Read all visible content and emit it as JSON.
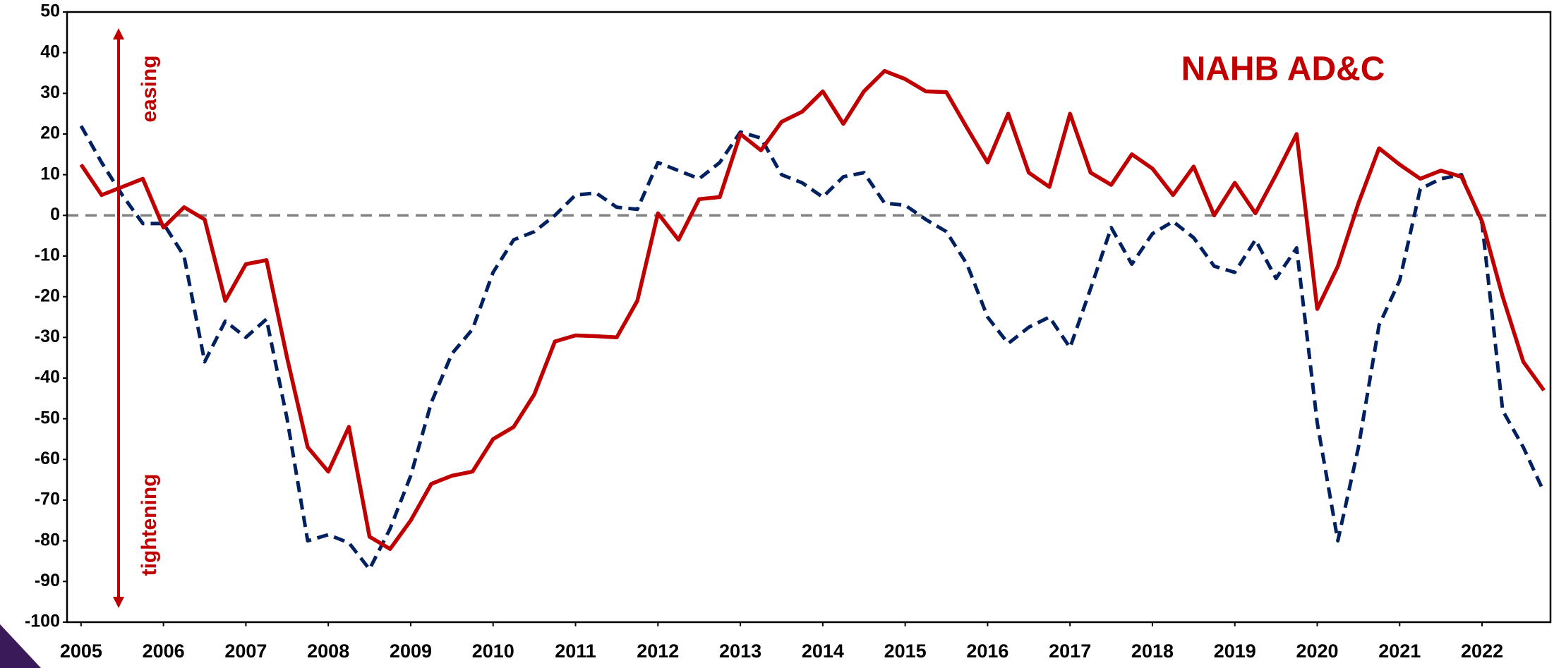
{
  "chart_data": {
    "type": "line",
    "annotations": [
      "NAHB AD&C",
      "easing",
      "tightening"
    ],
    "x": [
      2005,
      2005.25,
      2005.5,
      2005.75,
      2006,
      2006.25,
      2006.5,
      2006.75,
      2007,
      2007.25,
      2007.5,
      2007.75,
      2008,
      2008.25,
      2008.5,
      2008.75,
      2009,
      2009.25,
      2009.5,
      2009.75,
      2010,
      2010.25,
      2010.5,
      2010.75,
      2011,
      2011.25,
      2011.5,
      2011.75,
      2012,
      2012.25,
      2012.5,
      2012.75,
      2013,
      2013.25,
      2013.5,
      2013.75,
      2014,
      2014.25,
      2014.5,
      2014.75,
      2015,
      2015.25,
      2015.5,
      2015.75,
      2016,
      2016.25,
      2016.5,
      2016.75,
      2017,
      2017.25,
      2017.5,
      2017.75,
      2018,
      2018.25,
      2018.5,
      2018.75,
      2019,
      2019.25,
      2019.5,
      2019.75,
      2020,
      2020.25,
      2020.5,
      2020.75,
      2021,
      2021.25,
      2021.5,
      2021.75,
      2022,
      2022.25,
      2022.5,
      2022.75
    ],
    "series": [
      {
        "color": "#c00000",
        "dashed": false,
        "values": [
          12.5,
          5,
          7,
          9,
          -3,
          2,
          -1,
          -21,
          -12,
          -11,
          -35,
          -57,
          -63,
          -52,
          -79,
          -82,
          -75,
          -66,
          -64,
          -63,
          -55,
          -52,
          -44,
          -31,
          -29.5,
          -29.7,
          -30,
          -21,
          0.5,
          -6,
          4,
          4.5,
          20,
          16,
          23,
          25.5,
          30.5,
          22.5,
          30.5,
          35.5,
          33.5,
          30.5,
          30.3,
          21.5,
          13,
          25,
          10.5,
          7,
          25,
          10.5,
          7.5,
          15,
          11.5,
          5,
          12,
          0,
          8,
          0.5,
          10,
          20,
          -23,
          -12.5,
          3,
          16.5,
          12.5,
          9,
          11,
          9.5,
          -1.5,
          -20,
          -36,
          -43
        ]
      },
      {
        "color": "#002060",
        "dashed": true,
        "values": [
          22,
          13,
          5,
          -2,
          -2,
          -10,
          -36,
          -26,
          -30,
          -25.5,
          -50,
          -80,
          -78.5,
          -80.5,
          -87,
          -77,
          -64,
          -46,
          -34,
          -28,
          -14,
          -6,
          -4,
          0,
          5,
          5.5,
          2,
          1.5,
          13,
          11,
          9,
          13,
          20.5,
          19,
          10,
          8,
          4.5,
          9.5,
          10.5,
          3,
          2.5,
          -1,
          -4,
          -12,
          -25,
          -31.5,
          -27.5,
          -25,
          -32.5,
          -18,
          -3,
          -12,
          -4.5,
          -1.5,
          -5.5,
          -12.5,
          -14,
          -6,
          -15.5,
          -8,
          -51,
          -80,
          -57,
          -27,
          -16,
          6.5,
          9,
          10,
          -2,
          -48,
          -57,
          -68
        ]
      }
    ],
    "xlim": [
      2004.83,
      2022.83
    ],
    "xticks": [
      2005,
      2006,
      2007,
      2008,
      2009,
      2010,
      2011,
      2012,
      2013,
      2014,
      2015,
      2016,
      2017,
      2018,
      2019,
      2020,
      2021,
      2022
    ],
    "ylim": [
      -100,
      50
    ],
    "yticks": [
      -100,
      -90,
      -80,
      -70,
      -60,
      -50,
      -40,
      -30,
      -20,
      -10,
      0,
      10,
      20,
      30,
      40,
      50
    ],
    "zero_line": true
  }
}
